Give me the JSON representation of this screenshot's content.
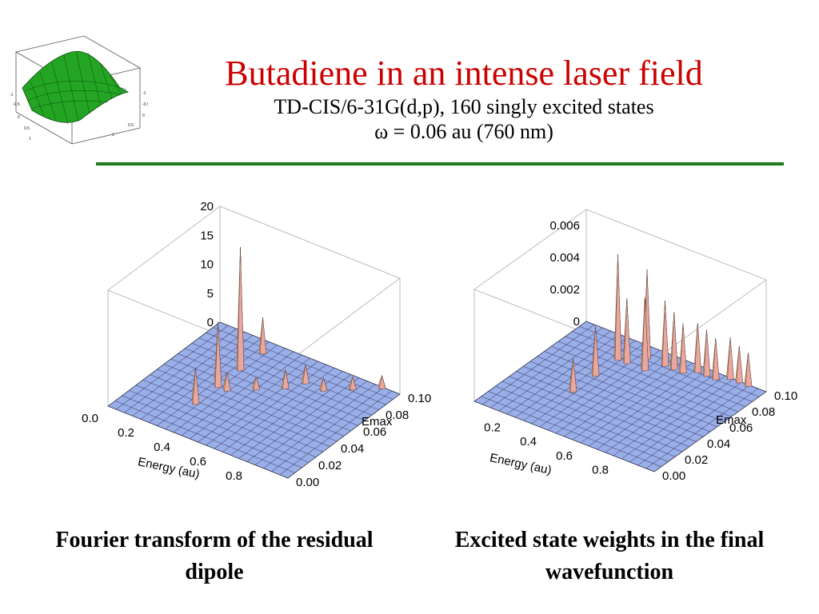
{
  "slide": {
    "title": "Butadiene in an intense laser field",
    "subtitle": "TD-CIS/6-31G(d,p), 160 singly excited states",
    "omega_line": "ω = 0.06 au (760 nm)",
    "title_color": "#cc0000",
    "rule_color": "#1f7a1f",
    "logo_icon": "green-3d-surface-icon",
    "logo_tick_labels": [
      "-1",
      "-0.5",
      "0",
      "0.5",
      "1"
    ]
  },
  "captions": {
    "left": "Fourier transform of the residual dipole",
    "right": "Excited state weights in the final wavefunction"
  },
  "chart_data": [
    {
      "type": "surface",
      "title": "",
      "xlabel": "Energy (au)",
      "ylabel": "Emax",
      "zlabel": "",
      "x_ticks": [
        "0.0",
        "0.2",
        "0.4",
        "0.6",
        "0.8"
      ],
      "y_ticks": [
        "0.00",
        "0.02",
        "0.04",
        "0.06",
        "0.08",
        "0.10"
      ],
      "z_ticks": [
        "0",
        "5",
        "10",
        "15",
        "20"
      ],
      "xlim": [
        0,
        1
      ],
      "ylim": [
        0,
        0.1
      ],
      "zlim": [
        0,
        20
      ],
      "surface_color": "#9aaee8",
      "peak_color": "#f4b27e",
      "peaks": [
        {
          "energy": 0.3,
          "emax": 0.03,
          "value": 6
        },
        {
          "energy": 0.3,
          "emax": 0.05,
          "value": 11
        },
        {
          "energy": 0.3,
          "emax": 0.07,
          "value": 21
        },
        {
          "energy": 0.3,
          "emax": 0.09,
          "value": 6
        },
        {
          "energy": 0.35,
          "emax": 0.05,
          "value": 3
        },
        {
          "energy": 0.45,
          "emax": 0.06,
          "value": 2
        },
        {
          "energy": 0.55,
          "emax": 0.07,
          "value": 3
        },
        {
          "energy": 0.6,
          "emax": 0.08,
          "value": 3
        },
        {
          "energy": 0.7,
          "emax": 0.08,
          "value": 2
        },
        {
          "energy": 0.8,
          "emax": 0.09,
          "value": 2
        },
        {
          "energy": 0.9,
          "emax": 0.1,
          "value": 2
        }
      ]
    },
    {
      "type": "surface",
      "title": "",
      "xlabel": "Energy (au)",
      "ylabel": "Emax",
      "zlabel": "",
      "x_ticks": [
        "0.2",
        "0.4",
        "0.6",
        "0.8"
      ],
      "y_ticks": [
        "0.00",
        "0.02",
        "0.04",
        "0.06",
        "0.08",
        "0.10"
      ],
      "z_ticks": [
        "0",
        "0.002",
        "0.004",
        "0.006"
      ],
      "xlim": [
        0,
        1
      ],
      "ylim": [
        0,
        0.1
      ],
      "zlim": [
        0,
        0.007
      ],
      "surface_color": "#9aaee8",
      "peak_color": "#f4b27e",
      "peaks": [
        {
          "energy": 0.3,
          "emax": 0.04,
          "value": 0.002
        },
        {
          "energy": 0.3,
          "emax": 0.06,
          "value": 0.003
        },
        {
          "energy": 0.3,
          "emax": 0.08,
          "value": 0.0065
        },
        {
          "energy": 0.35,
          "emax": 0.08,
          "value": 0.004
        },
        {
          "energy": 0.4,
          "emax": 0.09,
          "value": 0.0055
        },
        {
          "energy": 0.45,
          "emax": 0.08,
          "value": 0.0045
        },
        {
          "energy": 0.5,
          "emax": 0.09,
          "value": 0.004
        },
        {
          "energy": 0.55,
          "emax": 0.09,
          "value": 0.0035
        },
        {
          "energy": 0.6,
          "emax": 0.09,
          "value": 0.003
        },
        {
          "energy": 0.65,
          "emax": 0.095,
          "value": 0.003
        },
        {
          "energy": 0.7,
          "emax": 0.095,
          "value": 0.0028
        },
        {
          "energy": 0.75,
          "emax": 0.095,
          "value": 0.0025
        },
        {
          "energy": 0.8,
          "emax": 0.1,
          "value": 0.0025
        },
        {
          "energy": 0.85,
          "emax": 0.1,
          "value": 0.0022
        },
        {
          "energy": 0.9,
          "emax": 0.1,
          "value": 0.002
        }
      ]
    }
  ]
}
